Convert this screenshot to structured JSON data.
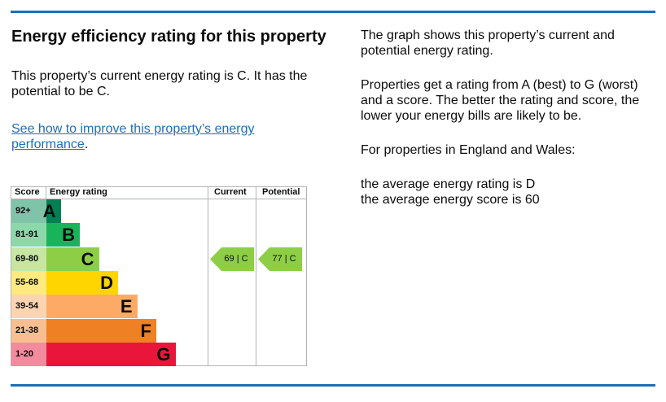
{
  "heading": "Energy efficiency rating for this property",
  "intro": "This property’s current energy rating is C. It has the potential to be C.",
  "improve_link": "See how to improve this property’s energy performance",
  "improve_suffix": ".",
  "right": {
    "p1": "The graph shows this property’s current and potential energy rating.",
    "p2": "Properties get a rating from A (best) to G (worst) and a score. The better the rating and score, the lower your energy bills are likely to be.",
    "p3": "For properties in England and Wales:",
    "p4a": "the average energy rating is D",
    "p4b": "the average energy score is 60"
  },
  "chart_data": {
    "type": "bar",
    "headers": {
      "score": "Score",
      "rating": "Energy rating",
      "current": "Current",
      "potential": "Potential"
    },
    "bands": [
      {
        "score": "92+",
        "letter": "A",
        "color": "#008054",
        "light": "#7fc4a8"
      },
      {
        "score": "81-91",
        "letter": "B",
        "color": "#19b459",
        "light": "#8cd8ab"
      },
      {
        "score": "69-80",
        "letter": "C",
        "color": "#8dce46",
        "light": "#c6e6a2"
      },
      {
        "score": "55-68",
        "letter": "D",
        "color": "#ffd500",
        "light": "#ffea80"
      },
      {
        "score": "39-54",
        "letter": "E",
        "color": "#fcaa65",
        "light": "#fdd4b2"
      },
      {
        "score": "21-38",
        "letter": "F",
        "color": "#ef8023",
        "light": "#f7bf91"
      },
      {
        "score": "1-20",
        "letter": "G",
        "color": "#e9153b",
        "light": "#f48a9d"
      }
    ],
    "current": {
      "label": "69 | C",
      "band_index": 2
    },
    "potential": {
      "label": "77 | C",
      "band_index": 2
    }
  }
}
